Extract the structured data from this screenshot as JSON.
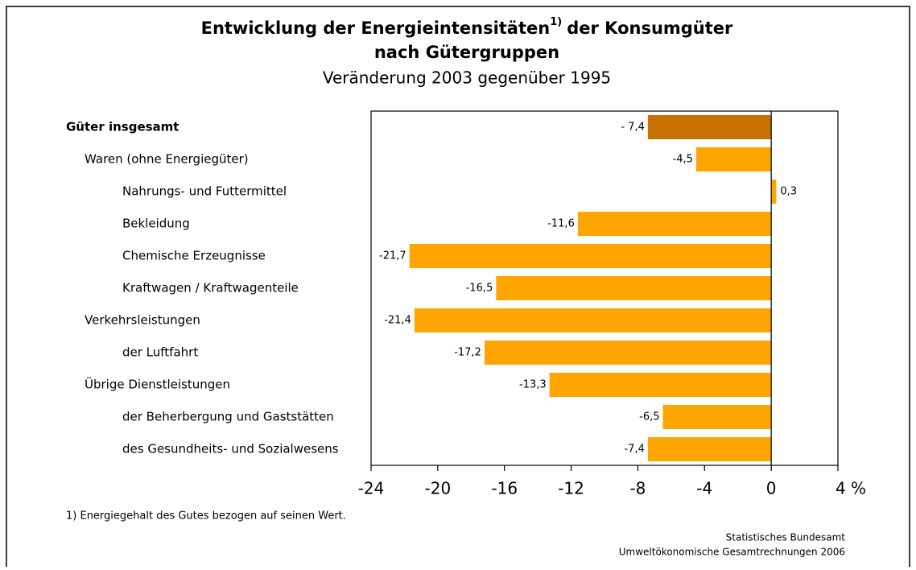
{
  "chart_data": {
    "type": "bar",
    "orientation": "horizontal",
    "title": {
      "line1": "Entwicklung der Energieintensitäten",
      "note_mark": "1)",
      "line1_end": "der Konsumgüter",
      "line2": "nach Gütergruppen"
    },
    "subtitle": "Veränderung 2003 gegenüber 1995",
    "categories": [
      "Güter insgesamt",
      "Waren (ohne Energiegüter)",
      "Nahrungs- und Futtermittel",
      "Bekleidung",
      "Chemische Erzeugnisse",
      "Kraftwagen / Kraftwagenteile",
      "Verkehrsleistungen",
      "der Luftfahrt",
      "Übrige Dienstleistungen",
      "der Beherbergung und Gaststätten",
      "des Gesundheits- und Sozialwesens"
    ],
    "values": [
      -7.4,
      -4.5,
      0.3,
      -11.6,
      -21.7,
      -16.5,
      -21.4,
      -17.2,
      -13.3,
      -6.5,
      -7.4
    ],
    "value_labels": [
      "- 7,4",
      "-4,5",
      "0,3",
      "-11,6",
      "-21,7",
      "-16,5",
      "-21,4",
      "-17,2",
      "-13,3",
      "-6,5",
      "-7,4"
    ],
    "colors": [
      "#c87000",
      "#ffa500",
      "#ffa500",
      "#ffa500",
      "#ffa500",
      "#ffa500",
      "#ffa500",
      "#ffa500",
      "#ffa500",
      "#ffa500",
      "#ffa500"
    ],
    "xlim": [
      -24,
      4
    ],
    "xticks": [
      -24,
      -20,
      -16,
      -12,
      -8,
      -4,
      0,
      {
        "value": 4,
        "label": "4 %"
      }
    ],
    "footnote": "1) Energiegehalt des Gutes bezogen auf seinen Wert.",
    "source": [
      "Statistisches Bundesamt",
      "Umweltökonomische Gesamtrechnungen 2006"
    ]
  }
}
